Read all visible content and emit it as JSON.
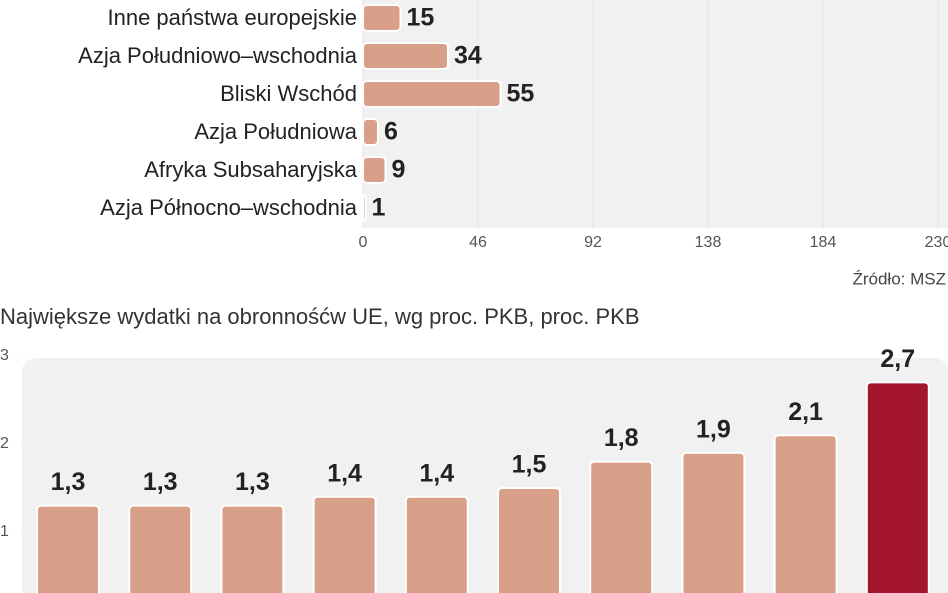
{
  "chart_data": [
    {
      "type": "bar",
      "orientation": "horizontal",
      "categories": [
        "Inne państwa europejskie",
        "Azja Południowo–wschodnia",
        "Bliski Wschód",
        "Azja Południowa",
        "Afryka Subsaharyjska",
        "Azja Północno–wschodnia"
      ],
      "values": [
        15,
        34,
        55,
        6,
        9,
        1
      ],
      "color": "#d9a089",
      "xlim": [
        0,
        230
      ],
      "xticks": [
        0,
        46,
        92,
        138,
        184,
        230
      ],
      "grid": true,
      "source": "Źródło: MSZ"
    },
    {
      "type": "bar",
      "orientation": "vertical",
      "title": "Największe wydatki na obronnośćw UE, wg proc. PKB,  proc. PKB",
      "categories": [
        null,
        null,
        null,
        null,
        null,
        null,
        null,
        null,
        null,
        null
      ],
      "values": [
        1.3,
        1.3,
        1.3,
        1.4,
        1.4,
        1.5,
        1.8,
        1.9,
        2.1,
        2.7
      ],
      "value_labels": [
        "1,3",
        "1,3",
        "1,3",
        "1,4",
        "1,4",
        "1,5",
        "1,8",
        "1,9",
        "2,1",
        "2,7"
      ],
      "colors": [
        "#d9a089",
        "#d9a089",
        "#d9a089",
        "#d9a089",
        "#d9a089",
        "#d9a089",
        "#d9a089",
        "#d9a089",
        "#d9a089",
        "#a3152c"
      ],
      "ylim": [
        0,
        3
      ],
      "yticks": [
        1,
        2,
        3
      ],
      "grid": false
    }
  ]
}
